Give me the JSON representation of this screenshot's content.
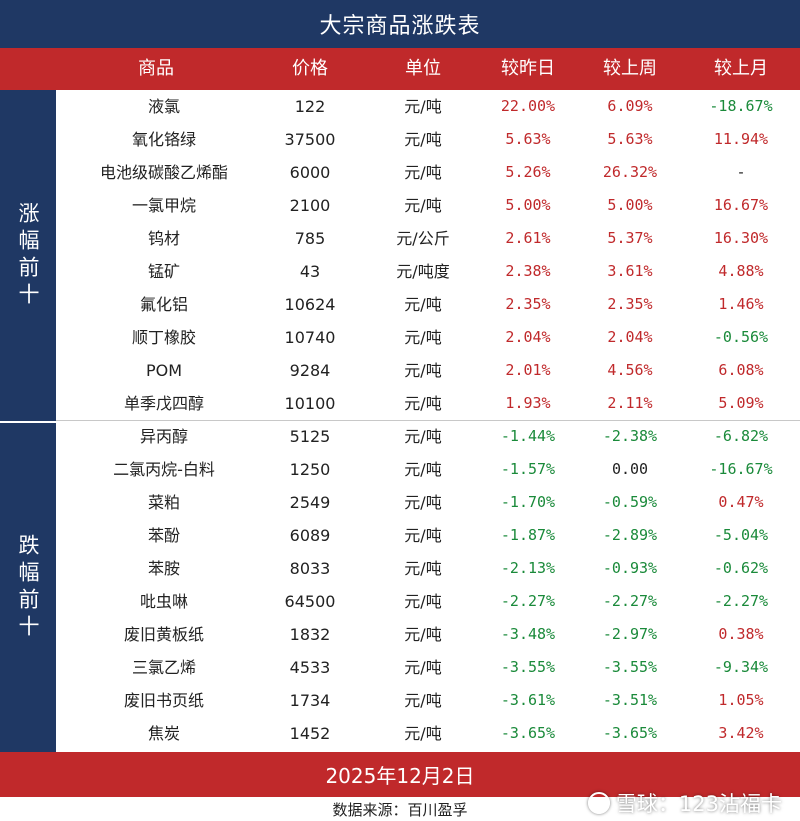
{
  "title": "大宗商品涨跌表",
  "headers": [
    "商品",
    "价格",
    "单位",
    "较昨日",
    "较上周",
    "较上月"
  ],
  "sections": [
    {
      "label": "涨幅前十",
      "rows": [
        {
          "name": "液氯",
          "price": "122",
          "unit": "元/吨",
          "day": "22.00%",
          "week": "6.09%",
          "month": "-18.67%"
        },
        {
          "name": "氧化铬绿",
          "price": "37500",
          "unit": "元/吨",
          "day": "5.63%",
          "week": "5.63%",
          "month": "11.94%"
        },
        {
          "name": "电池级碳酸乙烯酯",
          "price": "6000",
          "unit": "元/吨",
          "day": "5.26%",
          "week": "26.32%",
          "month": "-"
        },
        {
          "name": "一氯甲烷",
          "price": "2100",
          "unit": "元/吨",
          "day": "5.00%",
          "week": "5.00%",
          "month": "16.67%"
        },
        {
          "name": "钨材",
          "price": "785",
          "unit": "元/公斤",
          "day": "2.61%",
          "week": "5.37%",
          "month": "16.30%"
        },
        {
          "name": "锰矿",
          "price": "43",
          "unit": "元/吨度",
          "day": "2.38%",
          "week": "3.61%",
          "month": "4.88%"
        },
        {
          "name": "氟化铝",
          "price": "10624",
          "unit": "元/吨",
          "day": "2.35%",
          "week": "2.35%",
          "month": "1.46%"
        },
        {
          "name": "顺丁橡胶",
          "price": "10740",
          "unit": "元/吨",
          "day": "2.04%",
          "week": "2.04%",
          "month": "-0.56%"
        },
        {
          "name": "POM",
          "price": "9284",
          "unit": "元/吨",
          "day": "2.01%",
          "week": "4.56%",
          "month": "6.08%"
        },
        {
          "name": "单季戊四醇",
          "price": "10100",
          "unit": "元/吨",
          "day": "1.93%",
          "week": "2.11%",
          "month": "5.09%"
        }
      ]
    },
    {
      "label": "跌幅前十",
      "rows": [
        {
          "name": "异丙醇",
          "price": "5125",
          "unit": "元/吨",
          "day": "-1.44%",
          "week": "-2.38%",
          "month": "-6.82%"
        },
        {
          "name": "二氯丙烷-白料",
          "price": "1250",
          "unit": "元/吨",
          "day": "-1.57%",
          "week": "0.00",
          "month": "-16.67%"
        },
        {
          "name": "菜粕",
          "price": "2549",
          "unit": "元/吨",
          "day": "-1.70%",
          "week": "-0.59%",
          "month": "0.47%"
        },
        {
          "name": "苯酚",
          "price": "6089",
          "unit": "元/吨",
          "day": "-1.87%",
          "week": "-2.89%",
          "month": "-5.04%"
        },
        {
          "name": "苯胺",
          "price": "8033",
          "unit": "元/吨",
          "day": "-2.13%",
          "week": "-0.93%",
          "month": "-0.62%"
        },
        {
          "name": "吡虫啉",
          "price": "64500",
          "unit": "元/吨",
          "day": "-2.27%",
          "week": "-2.27%",
          "month": "-2.27%"
        },
        {
          "name": "废旧黄板纸",
          "price": "1832",
          "unit": "元/吨",
          "day": "-3.48%",
          "week": "-2.97%",
          "month": "0.38%"
        },
        {
          "name": "三氯乙烯",
          "price": "4533",
          "unit": "元/吨",
          "day": "-3.55%",
          "week": "-3.55%",
          "month": "-9.34%"
        },
        {
          "name": "废旧书页纸",
          "price": "1734",
          "unit": "元/吨",
          "day": "-3.61%",
          "week": "-3.51%",
          "month": "1.05%"
        },
        {
          "name": "焦炭",
          "price": "1452",
          "unit": "元/吨",
          "day": "-3.65%",
          "week": "-3.65%",
          "month": "3.42%"
        }
      ]
    }
  ],
  "date": "2025年12月2日",
  "source": "数据来源：百川盈孚",
  "watermark": "雪球：123沾福卡",
  "colors": {
    "navy": "#1f3864",
    "red": "#c0292b",
    "up": "#c0292b",
    "down": "#1a8a3a"
  }
}
